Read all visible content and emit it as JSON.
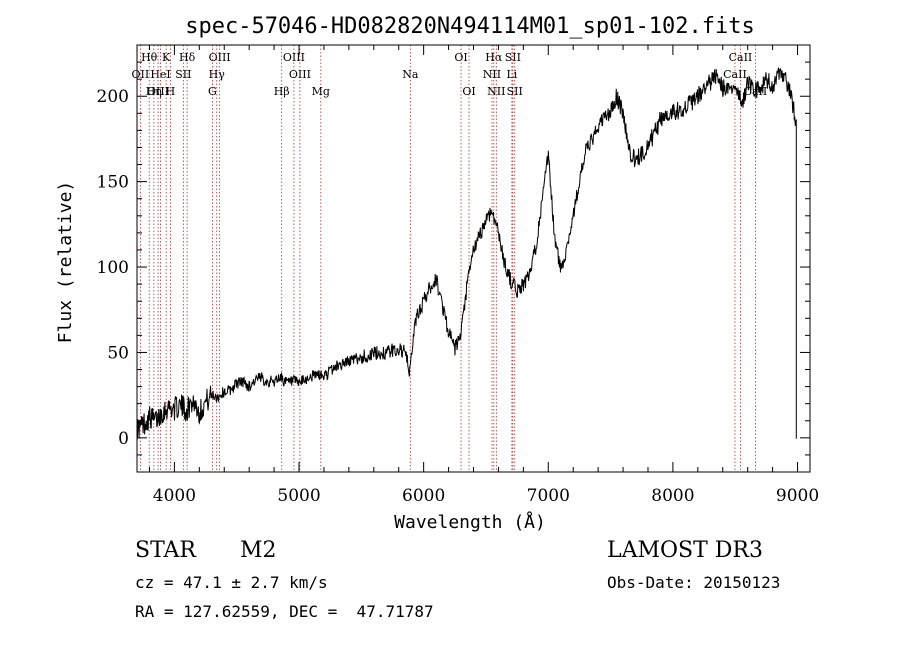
{
  "chart_data": {
    "type": "line",
    "title": "spec-57046-HD082820N494114M01_sp01-102.fits",
    "xlabel": "Wavelength (Å)",
    "ylabel": "Flux (relative)",
    "xlim": [
      3700,
      9100
    ],
    "ylim": [
      -20,
      230
    ],
    "x_ticks": [
      4000,
      5000,
      6000,
      7000,
      8000,
      9000
    ],
    "y_ticks": [
      0,
      50,
      100,
      150,
      200
    ],
    "x_tick_labels": [
      "4000",
      "5000",
      "6000",
      "7000",
      "8000",
      "9000"
    ],
    "y_tick_labels": [
      "0",
      "50",
      "100",
      "150",
      "200"
    ],
    "line_color": "#000000",
    "marker_color": "#b03030",
    "spectrum": {
      "name": "flux",
      "x": [
        3700,
        3750,
        3800,
        3850,
        3900,
        3950,
        4000,
        4050,
        4100,
        4150,
        4200,
        4250,
        4300,
        4350,
        4400,
        4450,
        4500,
        4550,
        4600,
        4650,
        4700,
        4750,
        4800,
        4850,
        4900,
        4950,
        5000,
        5050,
        5100,
        5150,
        5200,
        5300,
        5400,
        5500,
        5600,
        5700,
        5800,
        5850,
        5890,
        5920,
        5950,
        6000,
        6050,
        6100,
        6150,
        6200,
        6250,
        6300,
        6350,
        6400,
        6450,
        6500,
        6550,
        6600,
        6650,
        6700,
        6750,
        6800,
        6850,
        6900,
        6950,
        7000,
        7050,
        7100,
        7150,
        7200,
        7250,
        7300,
        7350,
        7400,
        7450,
        7500,
        7550,
        7600,
        7650,
        7700,
        7750,
        7800,
        7850,
        7900,
        7950,
        8000,
        8050,
        8100,
        8150,
        8200,
        8250,
        8300,
        8350,
        8400,
        8450,
        8500,
        8550,
        8600,
        8650,
        8700,
        8750,
        8800,
        8850,
        8900,
        8950,
        8990
      ],
      "y": [
        5,
        8,
        12,
        10,
        15,
        18,
        17,
        19,
        16,
        22,
        15,
        21,
        25,
        24,
        27,
        28,
        32,
        33,
        30,
        34,
        35,
        33,
        33,
        36,
        32,
        33,
        32,
        34,
        36,
        37,
        36,
        42,
        45,
        47,
        49,
        50,
        52,
        50,
        38,
        62,
        72,
        80,
        88,
        93,
        78,
        62,
        52,
        60,
        90,
        110,
        118,
        128,
        133,
        120,
        102,
        92,
        86,
        90,
        95,
        112,
        138,
        165,
        118,
        98,
        112,
        130,
        150,
        168,
        174,
        182,
        188,
        190,
        200,
        190,
        168,
        162,
        166,
        172,
        178,
        186,
        190,
        191,
        192,
        194,
        196,
        200,
        204,
        208,
        212,
        205,
        202,
        208,
        195,
        208,
        205,
        203,
        210,
        206,
        212,
        210,
        200,
        185
      ]
    },
    "line_markers": [
      {
        "label": "Hθ",
        "wavelength": 3798,
        "row": 1
      },
      {
        "label": "K",
        "wavelength": 3934,
        "row": 1
      },
      {
        "label": "Hδ",
        "wavelength": 4102,
        "row": 1
      },
      {
        "label": "OIII",
        "wavelength": 4363,
        "row": 1
      },
      {
        "label": "OIII",
        "wavelength": 4959,
        "row": 1
      },
      {
        "label": "OI",
        "wavelength": 6300,
        "row": 1
      },
      {
        "label": "Hα",
        "wavelength": 6563,
        "row": 1
      },
      {
        "label": "SII",
        "wavelength": 6716,
        "row": 1
      },
      {
        "label": "CaII",
        "wavelength": 8542,
        "row": 1
      },
      {
        "label": "OII",
        "wavelength": 3727,
        "row": 2
      },
      {
        "label": "HeI",
        "wavelength": 3889,
        "row": 2
      },
      {
        "label": "SII",
        "wavelength": 4072,
        "row": 2
      },
      {
        "label": "Hγ",
        "wavelength": 4340,
        "row": 2
      },
      {
        "label": "OIII",
        "wavelength": 5007,
        "row": 2
      },
      {
        "label": "Na",
        "wavelength": 5893,
        "row": 2
      },
      {
        "label": "NII",
        "wavelength": 6548,
        "row": 2
      },
      {
        "label": "Li",
        "wavelength": 6708,
        "row": 2
      },
      {
        "label": "CaII",
        "wavelength": 8498,
        "row": 2
      },
      {
        "label": "OIII",
        "wavelength": 3869,
        "row": 3
      },
      {
        "label": "Hη",
        "wavelength": 3835,
        "row": 3
      },
      {
        "label": "H",
        "wavelength": 3968,
        "row": 3
      },
      {
        "label": "G",
        "wavelength": 4305,
        "row": 3
      },
      {
        "label": "Hβ",
        "wavelength": 4861,
        "row": 3
      },
      {
        "label": "Mg",
        "wavelength": 5175,
        "row": 3
      },
      {
        "label": "OI",
        "wavelength": 6364,
        "row": 3
      },
      {
        "label": "NII",
        "wavelength": 6583,
        "row": 3
      },
      {
        "label": "SII",
        "wavelength": 6731,
        "row": 3
      },
      {
        "label": "CaII",
        "wavelength": 8662,
        "row": 3
      }
    ]
  },
  "info": {
    "class_label": "STAR",
    "subclass": "M2",
    "cz_text": "cz = 47.1 ± 2.7 km/s",
    "coords_text": "RA = 127.62559, DEC =  47.71787",
    "survey": "LAMOST DR3",
    "obs_date": "Obs-Date: 20150123"
  }
}
